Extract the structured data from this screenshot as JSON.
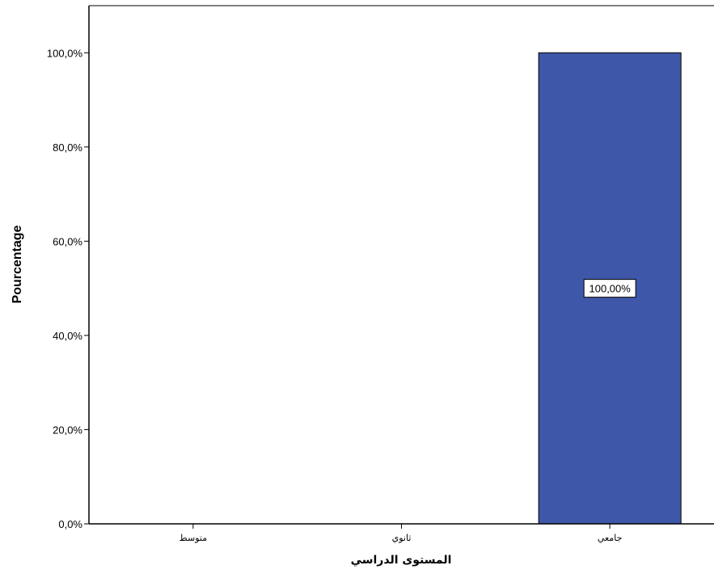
{
  "chart_data": {
    "type": "bar",
    "categories": [
      "متوسط",
      "ثانوي",
      "جامعي"
    ],
    "values": [
      0,
      0,
      100
    ],
    "value_unit": "percent",
    "data_labels": [
      "",
      "",
      "100,00%"
    ],
    "xlabel": "المستوى الدراسي",
    "ylabel": "Pourcentage",
    "ylim": [
      0,
      110
    ],
    "yticks": [
      0,
      20,
      40,
      60,
      80,
      100
    ],
    "ytick_labels": [
      "0,0%",
      "20,0%",
      "40,0%",
      "60,0%",
      "80,0%",
      "100,0%"
    ],
    "grid": false,
    "legend": "none",
    "bar_color": "#3F57A8",
    "bar_outline_color": "#000000",
    "axis_color": "#000000",
    "frame_color": "#808080"
  }
}
